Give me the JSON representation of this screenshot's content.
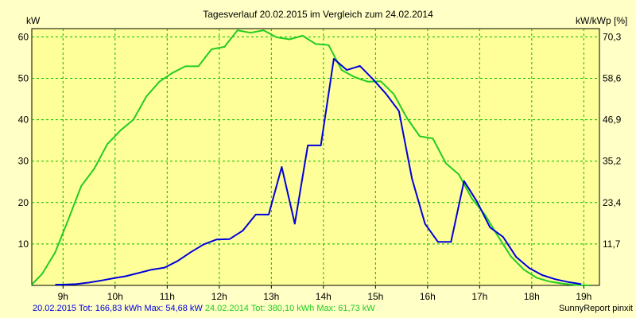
{
  "chart_data": {
    "type": "line",
    "title": "Tagesverlauf 20.02.2015 im Vergleich zum 24.02.2014",
    "ylabel_left": "kW",
    "ylabel_right": "kW/kWp [%]",
    "xlabel": "",
    "x_ticks": [
      "9h",
      "10h",
      "11h",
      "12h",
      "13h",
      "14h",
      "15h",
      "16h",
      "17h",
      "18h",
      "19h"
    ],
    "xlim": [
      8.4,
      19.3
    ],
    "ylim": [
      0,
      62
    ],
    "y_ticks_left": [
      "10",
      "20",
      "30",
      "40",
      "50",
      "60"
    ],
    "y_ticks_right": [
      "11,7",
      "23,4",
      "35,2",
      "46,9",
      "58,6",
      "70,3"
    ],
    "grid": true,
    "series": [
      {
        "name": "20.02.2015",
        "color": "#0000dd",
        "x": [
          8.85,
          9.0,
          9.25,
          9.5,
          9.75,
          10.0,
          10.2,
          10.45,
          10.7,
          10.95,
          11.2,
          11.45,
          11.7,
          11.95,
          12.2,
          12.45,
          12.7,
          12.95,
          13.2,
          13.45,
          13.7,
          13.95,
          14.2,
          14.45,
          14.7,
          14.95,
          15.2,
          15.45,
          15.7,
          15.95,
          16.2,
          16.45,
          16.7,
          16.95,
          17.2,
          17.45,
          17.7,
          17.95,
          18.2,
          18.45,
          18.7,
          18.95
        ],
        "values": [
          0.2,
          0.2,
          0.3,
          0.7,
          1.2,
          1.8,
          2.2,
          3.0,
          3.8,
          4.3,
          5.9,
          8.0,
          9.9,
          11.1,
          11.2,
          13.2,
          17.1,
          17.1,
          28.6,
          14.9,
          33.8,
          33.8,
          54.7,
          52.0,
          53.0,
          49.8,
          46.3,
          42.1,
          25.8,
          14.9,
          10.5,
          10.5,
          25.2,
          20.2,
          14.0,
          11.7,
          6.9,
          4.2,
          2.5,
          1.5,
          0.8,
          0.3
        ]
      },
      {
        "name": "24.02.2014",
        "color": "#22cc22",
        "x": [
          8.4,
          8.6,
          8.85,
          9.1,
          9.35,
          9.6,
          9.85,
          10.1,
          10.35,
          10.6,
          10.85,
          11.1,
          11.35,
          11.6,
          11.85,
          12.1,
          12.35,
          12.6,
          12.85,
          13.1,
          13.35,
          13.6,
          13.85,
          14.1,
          14.35,
          14.6,
          14.85,
          15.1,
          15.35,
          15.6,
          15.85,
          16.1,
          16.35,
          16.6,
          16.85,
          17.1,
          17.35,
          17.6,
          17.85,
          18.1,
          18.35,
          18.6,
          18.85,
          19.1
        ],
        "values": [
          0.2,
          2.8,
          8.0,
          15.9,
          24.0,
          28.2,
          34.1,
          37.4,
          40.0,
          45.6,
          49.2,
          51.3,
          52.9,
          52.9,
          57.0,
          57.6,
          61.6,
          61.0,
          61.6,
          59.9,
          59.4,
          60.3,
          58.3,
          58.0,
          52.0,
          50.3,
          49.2,
          49.3,
          46.2,
          40.5,
          36.0,
          35.5,
          29.5,
          26.8,
          21.0,
          17.1,
          11.9,
          7.0,
          3.8,
          1.8,
          0.9,
          0.4,
          0.1,
          0.0
        ]
      }
    ]
  },
  "footer": {
    "left_series1": "20.02.2015 Tot: 166,83 kWh Max: 54,68 kW",
    "left_series2": "24.02.2014 Tot: 380,10 kWh Max: 61,73 kW",
    "right": "SunnyReport pinxit"
  }
}
